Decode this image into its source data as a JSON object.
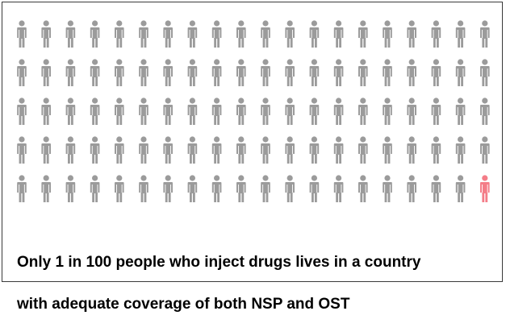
{
  "chart_data": {
    "type": "pictogram",
    "total": 100,
    "highlighted": 1,
    "rows": 5,
    "columns": 20,
    "highlight_color": "#f47d88",
    "base_color": "#9b9b9b",
    "icon": "person-icon"
  },
  "caption": {
    "line1": "Only 1 in 100 people who inject drugs lives in a country",
    "line2": "with adequate coverage of both NSP and OST"
  }
}
